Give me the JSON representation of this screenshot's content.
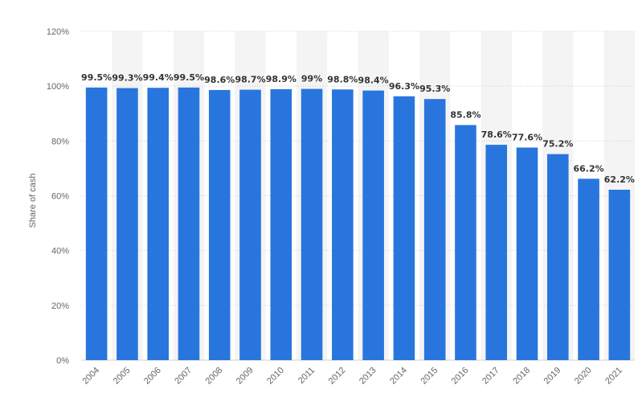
{
  "chart_data": {
    "type": "bar",
    "ylabel": "Share of cash",
    "xlabel": "",
    "ylim": [
      0,
      120
    ],
    "yticks": [
      "0%",
      "20%",
      "40%",
      "60%",
      "80%",
      "100%",
      "120%"
    ],
    "yticks_values": [
      0,
      20,
      40,
      60,
      80,
      100,
      120
    ],
    "categories": [
      "2004",
      "2005",
      "2006",
      "2007",
      "2008",
      "2009",
      "2010",
      "2011",
      "2012",
      "2013",
      "2014",
      "2015",
      "2016",
      "2017",
      "2018",
      "2019",
      "2020",
      "2021"
    ],
    "values": [
      99.5,
      99.3,
      99.4,
      99.5,
      98.6,
      98.7,
      98.9,
      99,
      98.8,
      98.4,
      96.3,
      95.3,
      85.8,
      78.6,
      77.6,
      75.2,
      66.2,
      62.2
    ],
    "data_labels": [
      "99.5%",
      "99.3%",
      "99.4%",
      "99.5%",
      "98.6%",
      "98.7%",
      "98.9%",
      "99%",
      "98.8%",
      "98.4%",
      "96.3%",
      "95.3%",
      "85.8%",
      "78.6%",
      "77.6%",
      "75.2%",
      "66.2%",
      "62.2%"
    ],
    "colors": {
      "bar": "#2876dd",
      "grid": "#d0d0d0",
      "band": "#f4f4f4"
    },
    "grid": true,
    "legend": "none"
  }
}
